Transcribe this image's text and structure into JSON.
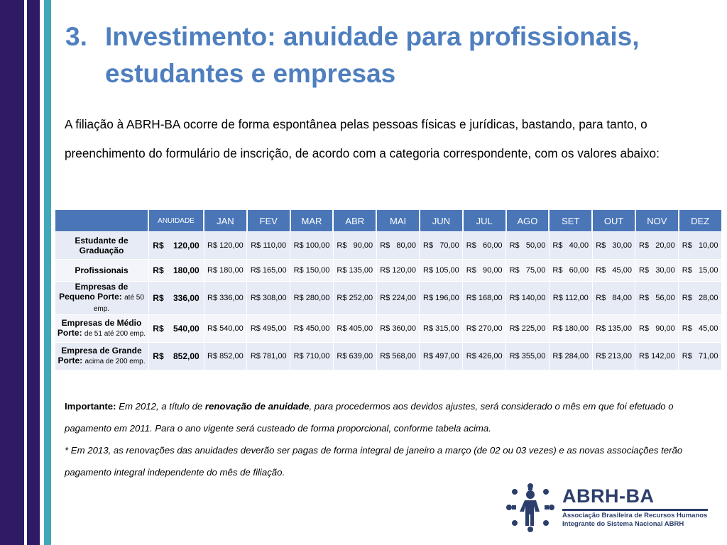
{
  "slide": {
    "title_number": "3.",
    "title_line1": "Investimento: anuidade para profissionais,",
    "title_line2": "estudantes e empresas",
    "intro": "A filiação à ABRH-BA ocorre de forma espontânea pelas pessoas físicas e jurídicas, bastando, para tanto, o preenchimento do formulário de inscrição, de acordo com a categoria correspondente, com os valores abaixo:"
  },
  "table": {
    "headers": [
      "",
      "ANUIDADE",
      "JAN",
      "FEV",
      "MAR",
      "ABR",
      "MAI",
      "JUN",
      "JUL",
      "AGO",
      "SET",
      "OUT",
      "NOV",
      "DEZ"
    ],
    "rows": [
      {
        "category": "Estudante de Graduação",
        "category_sub": "",
        "annual": "R$    120,00",
        "months": [
          "R$ 120,00",
          "R$ 110,00",
          "R$ 100,00",
          "R$   90,00",
          "R$   80,00",
          "R$   70,00",
          "R$   60,00",
          "R$   50,00",
          "R$   40,00",
          "R$   30,00",
          "R$   20,00",
          "R$   10,00"
        ]
      },
      {
        "category": "Profissionais",
        "category_sub": "",
        "annual": "R$    180,00",
        "months": [
          "R$ 180,00",
          "R$ 165,00",
          "R$ 150,00",
          "R$ 135,00",
          "R$ 120,00",
          "R$ 105,00",
          "R$   90,00",
          "R$   75,00",
          "R$   60,00",
          "R$   45,00",
          "R$   30,00",
          "R$   15,00"
        ]
      },
      {
        "category": "Empresas de Pequeno Porte:",
        "category_sub": "até 50 emp.",
        "annual": "R$    336,00",
        "months": [
          "R$ 336,00",
          "R$ 308,00",
          "R$ 280,00",
          "R$ 252,00",
          "R$ 224,00",
          "R$ 196,00",
          "R$ 168,00",
          "R$ 140,00",
          "R$ 112,00",
          "R$   84,00",
          "R$   56,00",
          "R$   28,00"
        ]
      },
      {
        "category": "Empresas de Médio Porte:",
        "category_sub": "de 51 até 200 emp.",
        "annual": "R$    540,00",
        "months": [
          "R$ 540,00",
          "R$ 495,00",
          "R$ 450,00",
          "R$ 405,00",
          "R$ 360,00",
          "R$ 315,00",
          "R$ 270,00",
          "R$ 225,00",
          "R$ 180,00",
          "R$ 135,00",
          "R$   90,00",
          "R$   45,00"
        ]
      },
      {
        "category": "Empresa de Grande Porte:",
        "category_sub": "acima de 200 emp.",
        "annual": "R$    852,00",
        "months": [
          "R$ 852,00",
          "R$ 781,00",
          "R$ 710,00",
          "R$ 639,00",
          "R$ 568,00",
          "R$ 497,00",
          "R$ 426,00",
          "R$ 355,00",
          "R$ 284,00",
          "R$ 213,00",
          "R$ 142,00",
          "R$   71,00"
        ]
      }
    ]
  },
  "notes": {
    "important_label": "Importante:",
    "text1": "Em 2012, a título de ",
    "bold_phrase": "renovação de anuidade",
    "text2": ", para procedermos aos devidos ajustes, será considerado o mês em que foi efetuado o pagamento em 2011. Para o ano vigente será custeado de forma proporcional, conforme tabela acima.",
    "note2": "* Em 2013, as renovações das anuidades deverão ser pagas de forma integral de janeiro a março (de 02 ou 03 vezes) e as novas associações terão pagamento integral independente do mês de filiação."
  },
  "logo": {
    "name": "ABRH-BA",
    "line1": "Associação Brasileira de Recursos Humanos",
    "line2": "Integrante do Sistema Nacional ABRH"
  },
  "colors": {
    "title": "#4f7fbf",
    "header_bg": "#4a76b8",
    "row_bg": "#e6ebf5",
    "bar_dark": "#2f1a66",
    "bar_teal": "#40a8b8",
    "logo": "#2c3e6b"
  }
}
